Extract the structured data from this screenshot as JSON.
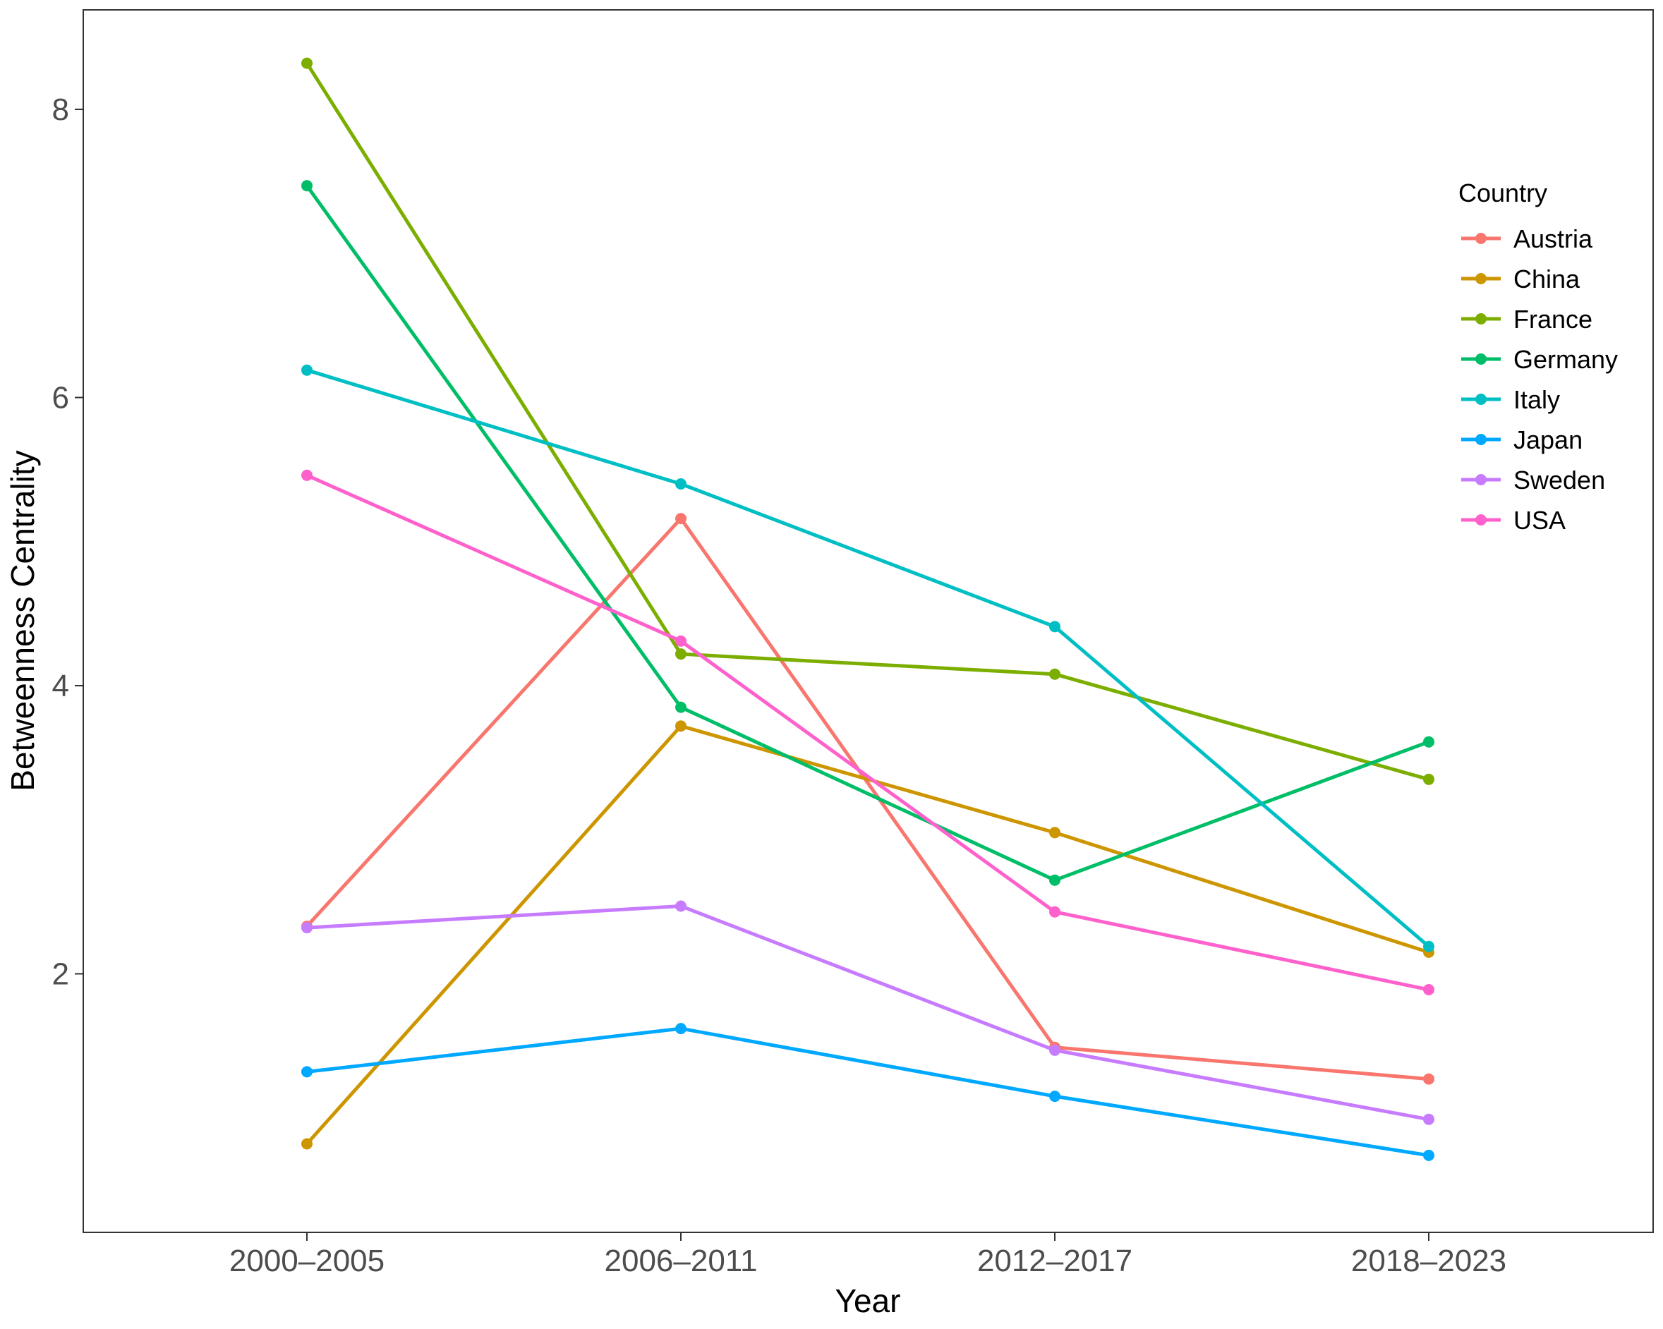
{
  "chart_data": {
    "type": "line",
    "title": "",
    "xlabel": "Year",
    "ylabel": "Betweenness Centrality",
    "categories": [
      "2000–2005",
      "2006–2011",
      "2012–2017",
      "2018–2023"
    ],
    "yticks": [
      2,
      4,
      6,
      8
    ],
    "ylim": [
      0.32,
      8.8
    ],
    "grid": false,
    "legend": {
      "title": "Country",
      "placement": "right"
    },
    "series": [
      {
        "name": "Austria",
        "color": "#F8766D",
        "values": [
          2.33,
          5.16,
          1.49,
          1.27
        ]
      },
      {
        "name": "China",
        "color": "#CD9600",
        "values": [
          0.82,
          3.72,
          2.98,
          2.15
        ]
      },
      {
        "name": "France",
        "color": "#7CAE00",
        "values": [
          8.32,
          4.22,
          4.08,
          3.35
        ]
      },
      {
        "name": "Germany",
        "color": "#00BE67",
        "values": [
          7.47,
          3.85,
          2.65,
          3.61
        ]
      },
      {
        "name": "Italy",
        "color": "#00BFC4",
        "values": [
          6.19,
          5.4,
          4.41,
          2.19
        ]
      },
      {
        "name": "Japan",
        "color": "#00A9FF",
        "values": [
          1.32,
          1.62,
          1.15,
          0.74
        ]
      },
      {
        "name": "Sweden",
        "color": "#C77CFF",
        "values": [
          2.32,
          2.47,
          1.47,
          0.99
        ]
      },
      {
        "name": "USA",
        "color": "#FF61CC",
        "values": [
          5.46,
          4.31,
          2.43,
          1.89
        ]
      }
    ]
  }
}
